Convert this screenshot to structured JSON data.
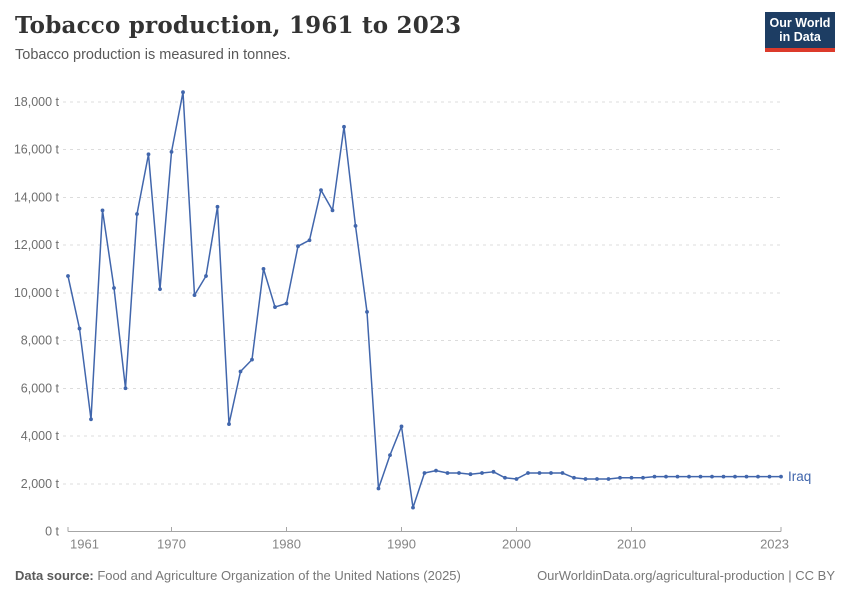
{
  "header": {
    "title": "Tobacco production, 1961 to 2023",
    "subtitle": "Tobacco production is measured in tonnes.",
    "logo": {
      "line1": "Our World",
      "line2": "in Data",
      "bg_color": "#1d3d63",
      "stripe_color": "#dc3a2b"
    }
  },
  "chart_data": {
    "type": "line",
    "title": "Tobacco production, 1961 to 2023",
    "xlabel": "",
    "ylabel": "",
    "unit": "tonnes",
    "xlim": [
      1961,
      2023
    ],
    "ylim": [
      0,
      18400
    ],
    "grid": "horizontal-dashed",
    "legend_position": "end-of-line-label",
    "x_ticks": [
      {
        "value": 1961,
        "label": "1961",
        "align": "start"
      },
      {
        "value": 1970,
        "label": "1970",
        "align": "middle"
      },
      {
        "value": 1980,
        "label": "1980",
        "align": "middle"
      },
      {
        "value": 1990,
        "label": "1990",
        "align": "middle"
      },
      {
        "value": 2000,
        "label": "2000",
        "align": "middle"
      },
      {
        "value": 2010,
        "label": "2010",
        "align": "middle"
      },
      {
        "value": 2023,
        "label": "2023",
        "align": "end"
      }
    ],
    "y_ticks": [
      {
        "value": 0,
        "label": "0 t"
      },
      {
        "value": 2000,
        "label": "2,000 t"
      },
      {
        "value": 4000,
        "label": "4,000 t"
      },
      {
        "value": 6000,
        "label": "6,000 t"
      },
      {
        "value": 8000,
        "label": "8,000 t"
      },
      {
        "value": 10000,
        "label": "10,000 t"
      },
      {
        "value": 12000,
        "label": "12,000 t"
      },
      {
        "value": 14000,
        "label": "14,000 t"
      },
      {
        "value": 16000,
        "label": "16,000 t"
      },
      {
        "value": 18000,
        "label": "18,000 t"
      }
    ],
    "series": [
      {
        "name": "Iraq",
        "color": "#4166ac",
        "x": [
          1961,
          1962,
          1963,
          1964,
          1965,
          1966,
          1967,
          1968,
          1969,
          1970,
          1971,
          1972,
          1973,
          1974,
          1975,
          1976,
          1977,
          1978,
          1979,
          1980,
          1981,
          1982,
          1983,
          1984,
          1985,
          1986,
          1987,
          1988,
          1989,
          1990,
          1991,
          1992,
          1993,
          1994,
          1995,
          1996,
          1997,
          1998,
          1999,
          2000,
          2001,
          2002,
          2003,
          2004,
          2005,
          2006,
          2007,
          2008,
          2009,
          2010,
          2011,
          2012,
          2013,
          2014,
          2015,
          2016,
          2017,
          2018,
          2019,
          2020,
          2021,
          2022,
          2023
        ],
        "values": [
          10700,
          8500,
          4700,
          13450,
          10200,
          6000,
          13300,
          15800,
          10150,
          15900,
          18400,
          9900,
          10700,
          13600,
          4500,
          6700,
          7200,
          11000,
          9400,
          9550,
          11950,
          12200,
          14300,
          13450,
          16950,
          12800,
          9200,
          1800,
          3200,
          4400,
          1000,
          2450,
          2550,
          2450,
          2450,
          2400,
          2450,
          2500,
          2250,
          2200,
          2450,
          2450,
          2450,
          2450,
          2250,
          2200,
          2200,
          2200,
          2250,
          2250,
          2250,
          2300,
          2300,
          2300,
          2300,
          2300,
          2300,
          2300,
          2300,
          2300,
          2300,
          2300,
          2300
        ]
      }
    ]
  },
  "footer": {
    "source_label": "Data source:",
    "source_text": " Food and Agriculture Organization of the United Nations (2025)",
    "right_text": "OurWorldinData.org/agricultural-production | CC BY"
  }
}
